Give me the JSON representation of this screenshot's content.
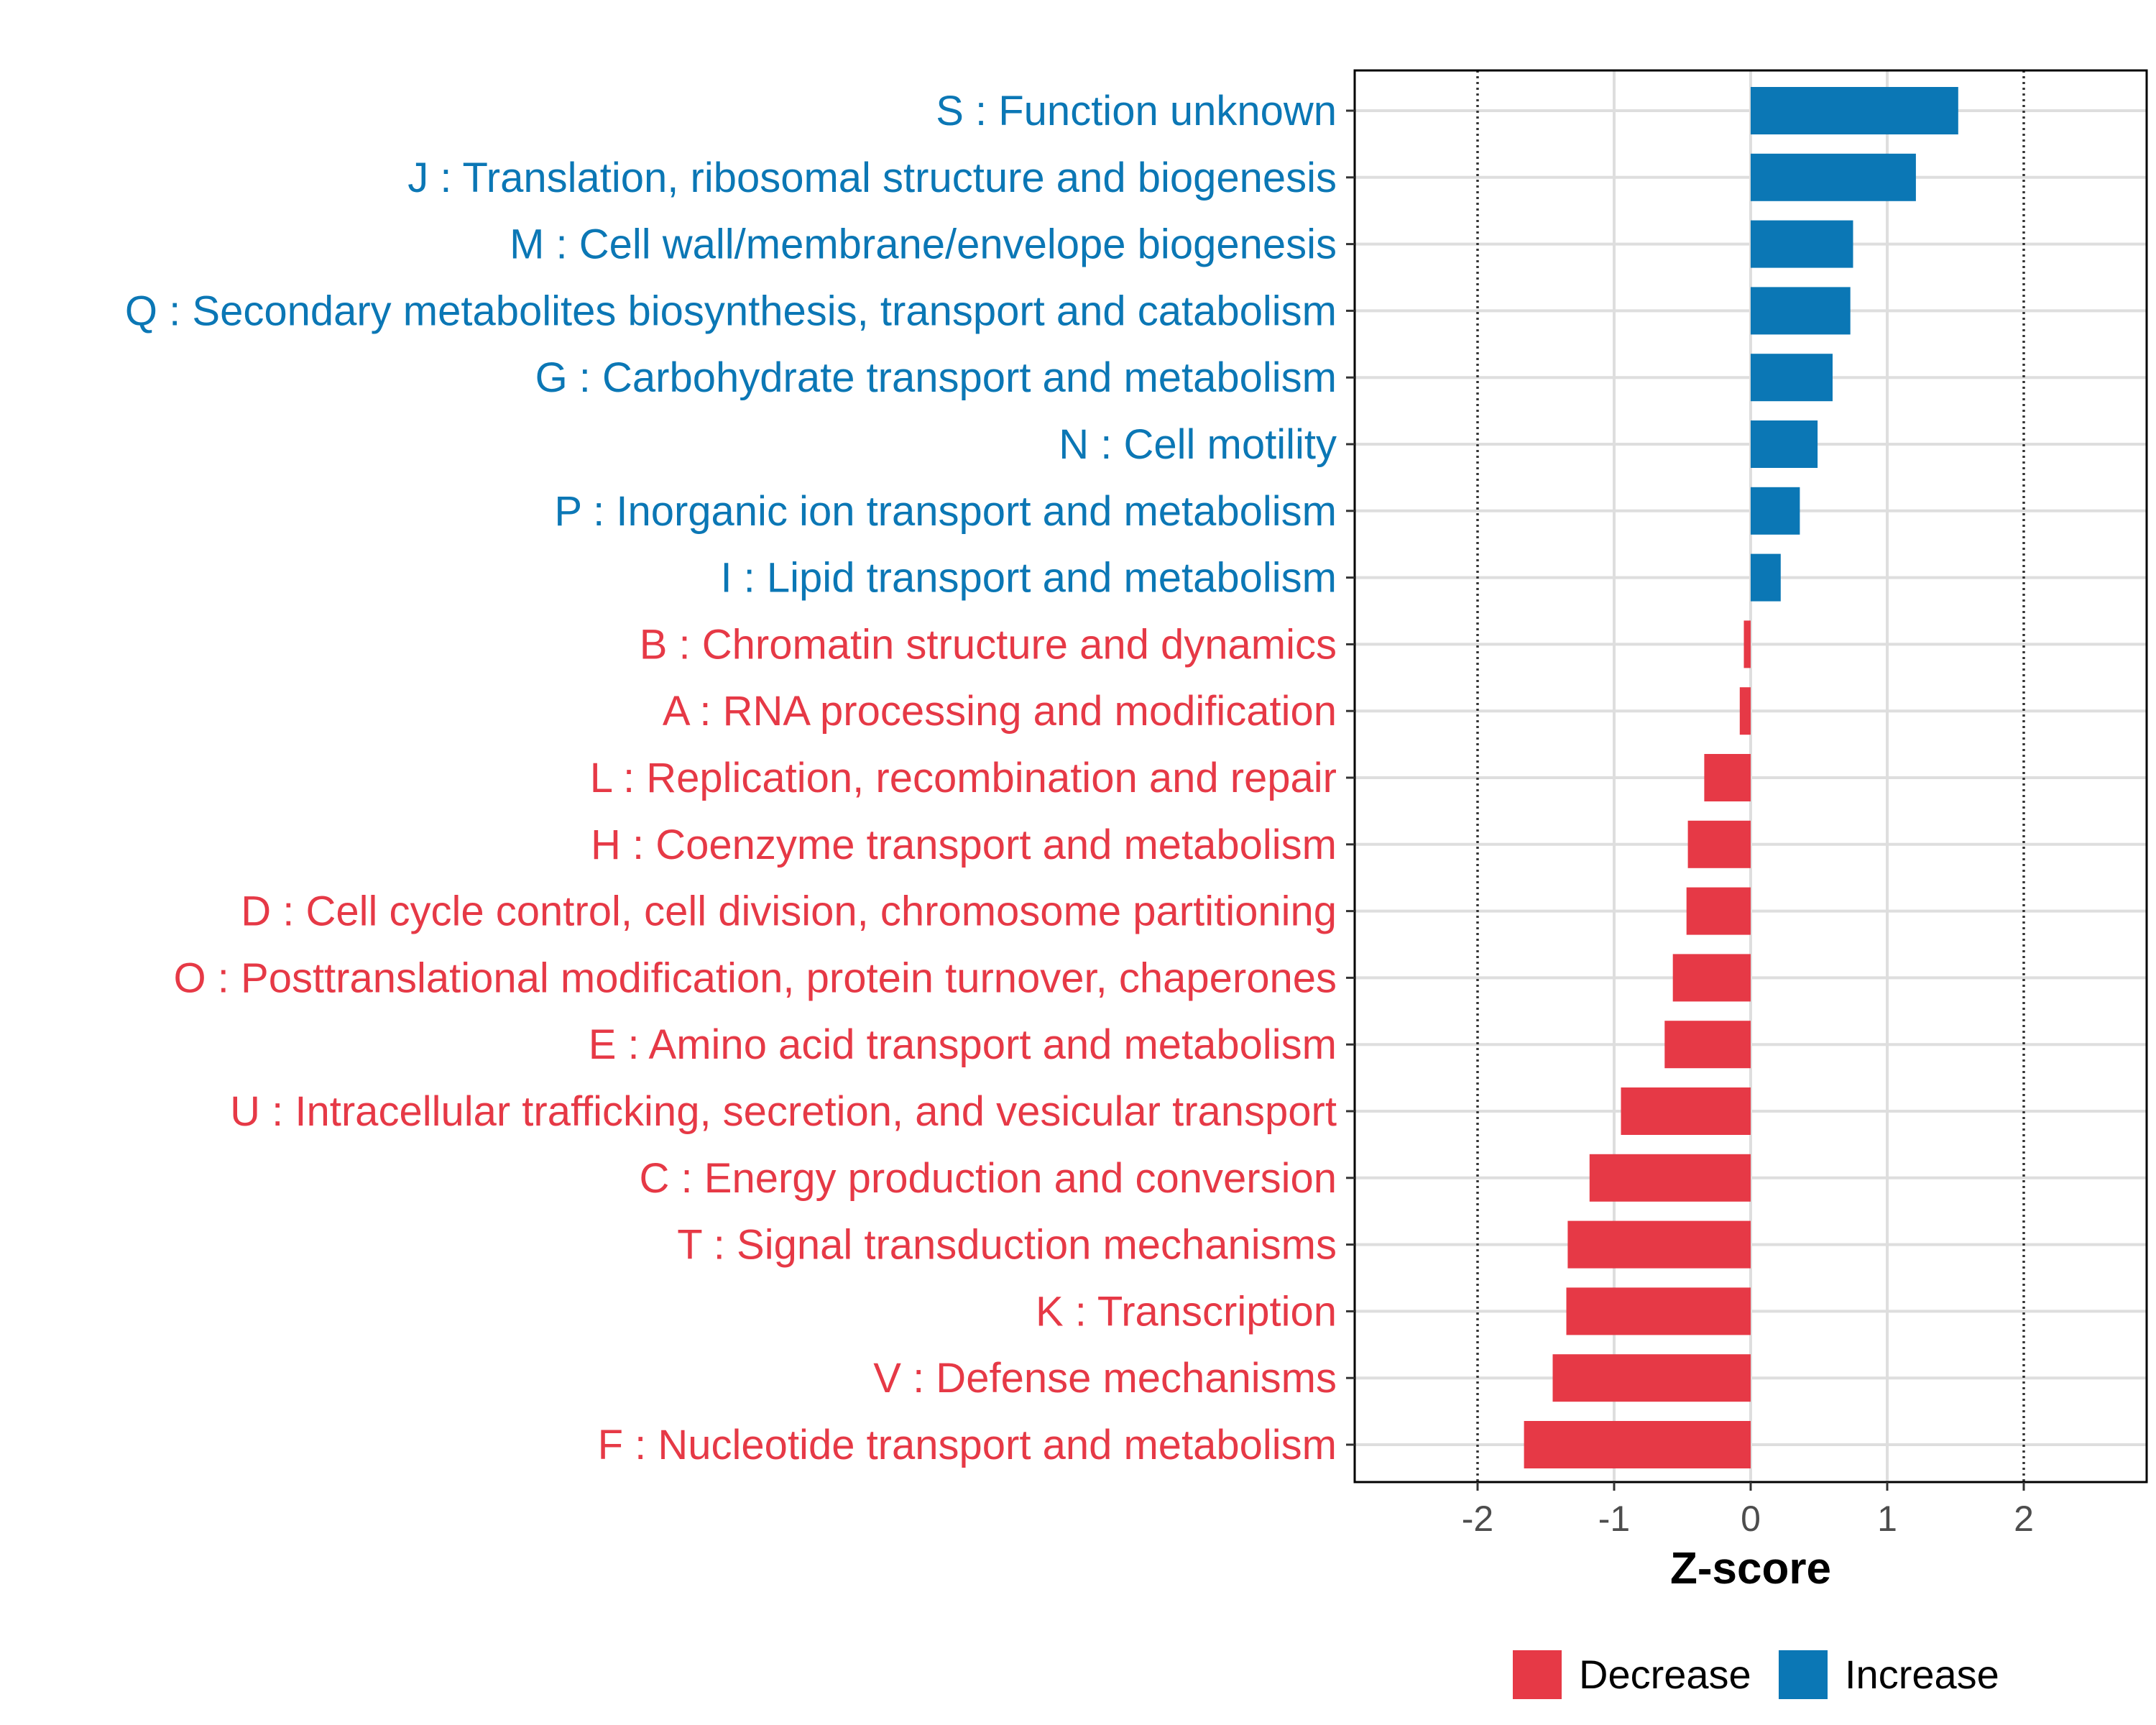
{
  "chart_data": {
    "type": "bar",
    "orientation": "horizontal",
    "title": "",
    "xlabel": "Z-score",
    "ylabel": "",
    "xlim": [
      -2.9,
      2.9
    ],
    "xticks": [
      -2,
      -1,
      0,
      1,
      2
    ],
    "xtick_labels": [
      "-2",
      "-1",
      "0",
      "1",
      "2"
    ],
    "reference_lines": [
      -2,
      2
    ],
    "grid": true,
    "categories": [
      "S : Function unknown",
      "J : Translation, ribosomal structure and biogenesis",
      "M : Cell wall/membrane/envelope biogenesis",
      "Q : Secondary metabolites biosynthesis, transport and catabolism",
      "G : Carbohydrate transport and metabolism",
      "N : Cell motility",
      "P : Inorganic ion transport and metabolism",
      "I : Lipid transport and metabolism",
      "B : Chromatin structure and dynamics",
      "A : RNA processing and modification",
      "L : Replication, recombination and repair",
      "H : Coenzyme transport and metabolism",
      "D : Cell cycle control, cell division, chromosome partitioning",
      "O : Posttranslational modification, protein turnover, chaperones",
      "E : Amino acid transport and metabolism",
      "U : Intracellular trafficking, secretion, and vesicular transport",
      "C : Energy production and conversion",
      "T : Signal transduction mechanisms",
      "K : Transcription",
      "V : Defense mechanisms",
      "F : Nucleotide transport and metabolism"
    ],
    "values": [
      1.52,
      1.21,
      0.75,
      0.73,
      0.6,
      0.49,
      0.36,
      0.22,
      -0.05,
      -0.08,
      -0.34,
      -0.46,
      -0.47,
      -0.57,
      -0.63,
      -0.95,
      -1.18,
      -1.34,
      -1.35,
      -1.45,
      -1.66
    ],
    "groups": [
      "Increase",
      "Increase",
      "Increase",
      "Increase",
      "Increase",
      "Increase",
      "Increase",
      "Increase",
      "Decrease",
      "Decrease",
      "Decrease",
      "Decrease",
      "Decrease",
      "Decrease",
      "Decrease",
      "Decrease",
      "Decrease",
      "Decrease",
      "Decrease",
      "Decrease",
      "Decrease"
    ],
    "legend": {
      "position": "bottom",
      "entries": [
        {
          "name": "Decrease",
          "color": "#e63946"
        },
        {
          "name": "Increase",
          "color": "#0b77b5"
        }
      ]
    }
  }
}
